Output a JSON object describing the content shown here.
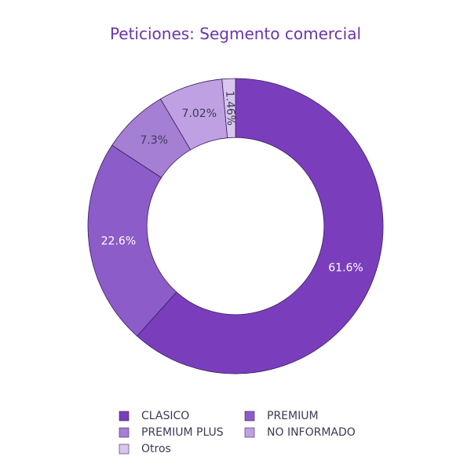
{
  "chart_data": {
    "type": "pie",
    "title": "Peticiones: Segmento comercial",
    "hole": 0.6,
    "labels": [
      "CLASICO",
      "PREMIUM",
      "PREMIUM PLUS",
      "NO INFORMADO",
      "Otros"
    ],
    "values": [
      61.6,
      22.6,
      7.3,
      7.02,
      1.46
    ],
    "value_labels": [
      "61.6%",
      "22.6%",
      "7.3%",
      "7.02%",
      "1.46%"
    ],
    "colors": [
      "#7a3ebd",
      "#8c5cc8",
      "#a57fd3",
      "#bfa1e3",
      "#d8c6ee"
    ],
    "label_colors": [
      "#ffffff",
      "#ffffff",
      "#3b3b55",
      "#3b3b55",
      "#3b3b55"
    ],
    "legend_position": "bottom-center"
  }
}
